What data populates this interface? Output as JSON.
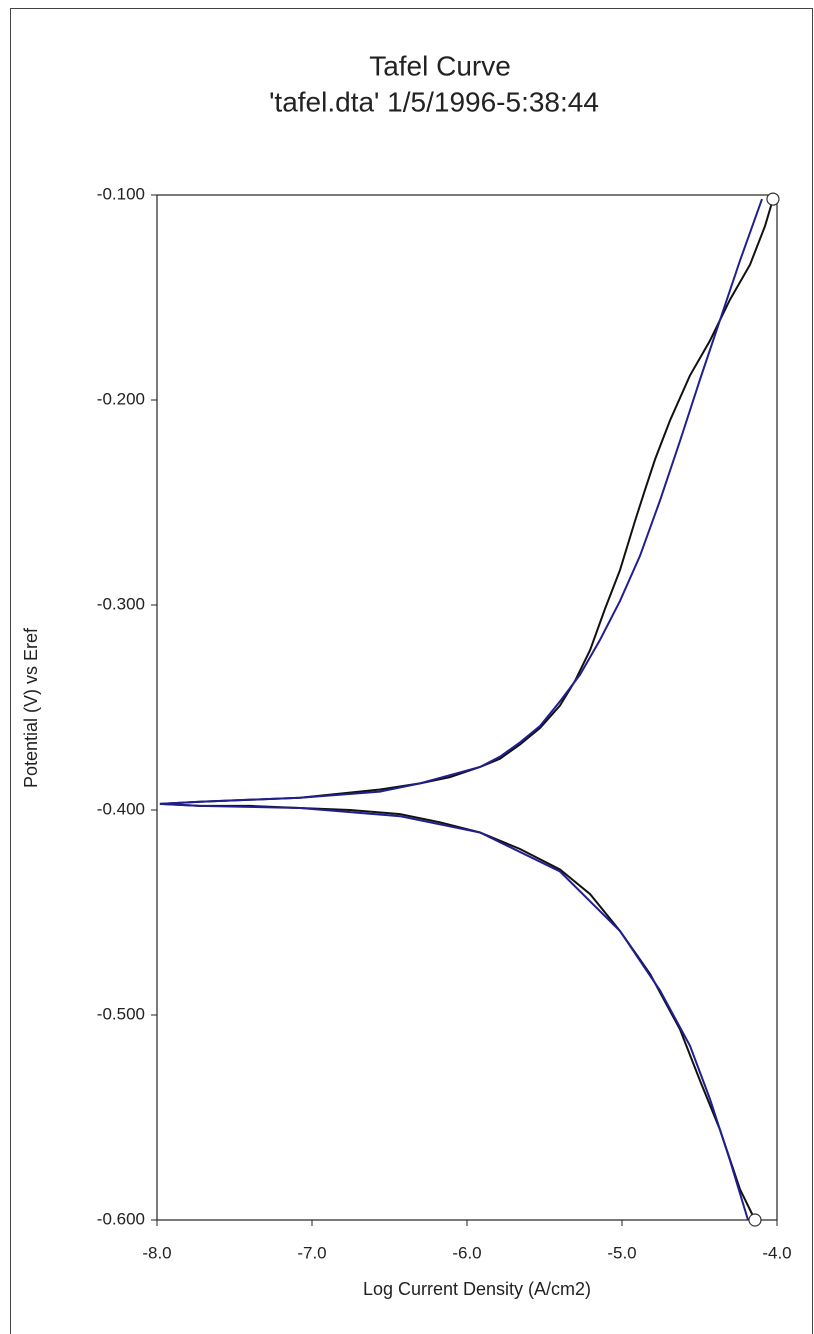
{
  "chart_data": {
    "type": "line",
    "title": "Tafel Curve",
    "subtitle": "'tafel.dta' 1/5/1996-5:38:44",
    "x_label": "Log Current Density (A/cm2)",
    "y_label": "Potential (V) vs Eref",
    "xlim": [
      -8.0,
      -4.0
    ],
    "ylim": [
      -0.6,
      -0.1
    ],
    "xticks": [
      {
        "value": -8,
        "label": "-8.0"
      },
      {
        "value": -7,
        "label": "-7.0"
      },
      {
        "value": -6,
        "label": "-6.0"
      },
      {
        "value": -5,
        "label": "-5.0"
      },
      {
        "value": -4,
        "label": "-4.0"
      }
    ],
    "yticks": [
      {
        "value": -0.1,
        "label": "-0.100"
      },
      {
        "value": -0.2,
        "label": "-0.200"
      },
      {
        "value": -0.3,
        "label": "-0.300"
      },
      {
        "value": -0.4,
        "label": "-0.400"
      },
      {
        "value": -0.5,
        "label": "-0.500"
      },
      {
        "value": -0.6,
        "label": "-0.600"
      }
    ],
    "series": [
      {
        "color": "#111111",
        "x": [
          -4.026,
          -4.077,
          -4.174,
          -4.303,
          -4.432,
          -4.561,
          -4.69,
          -4.787,
          -4.852,
          -4.916,
          -5.013,
          -5.11,
          -5.206,
          -5.303,
          -5.4,
          -5.529,
          -5.658,
          -5.787,
          -5.916,
          -6.11,
          -6.303,
          -6.561,
          -6.819,
          -7.077,
          -7.4,
          -7.723,
          -7.981,
          -7.723,
          -7.4,
          -7.077,
          -6.755,
          -6.432,
          -6.174,
          -5.916,
          -5.658,
          -5.4,
          -5.206,
          -5.013,
          -4.819,
          -4.626,
          -4.497,
          -4.368,
          -4.239,
          -4.142
        ],
        "values": [
          -0.102,
          -0.115,
          -0.134,
          -0.151,
          -0.171,
          -0.188,
          -0.21,
          -0.229,
          -0.244,
          -0.259,
          -0.283,
          -0.302,
          -0.322,
          -0.337,
          -0.349,
          -0.36,
          -0.368,
          -0.375,
          -0.379,
          -0.384,
          -0.387,
          -0.39,
          -0.392,
          -0.394,
          -0.395,
          -0.396,
          -0.397,
          -0.398,
          -0.398,
          -0.399,
          -0.4,
          -0.402,
          -0.406,
          -0.411,
          -0.419,
          -0.429,
          -0.441,
          -0.459,
          -0.48,
          -0.507,
          -0.532,
          -0.556,
          -0.585,
          -0.6
        ]
      },
      {
        "color": "#1f1f8f",
        "x": [
          -4.097,
          -4.239,
          -4.368,
          -4.497,
          -4.626,
          -4.755,
          -4.884,
          -5.013,
          -5.142,
          -5.271,
          -5.4,
          -5.529,
          -5.658,
          -5.787,
          -5.916,
          -6.11,
          -6.303,
          -6.561,
          -7.077,
          -7.723,
          -7.981,
          -7.723,
          -7.077,
          -6.432,
          -5.916,
          -5.4,
          -5.013,
          -4.755,
          -4.561,
          -4.432,
          -4.303,
          -4.187
        ],
        "values": [
          -0.102,
          -0.132,
          -0.161,
          -0.19,
          -0.22,
          -0.249,
          -0.276,
          -0.298,
          -0.317,
          -0.334,
          -0.347,
          -0.359,
          -0.367,
          -0.374,
          -0.379,
          -0.383,
          -0.387,
          -0.391,
          -0.394,
          -0.396,
          -0.397,
          -0.398,
          -0.399,
          -0.403,
          -0.411,
          -0.43,
          -0.459,
          -0.488,
          -0.515,
          -0.541,
          -0.571,
          -0.6
        ]
      }
    ]
  }
}
